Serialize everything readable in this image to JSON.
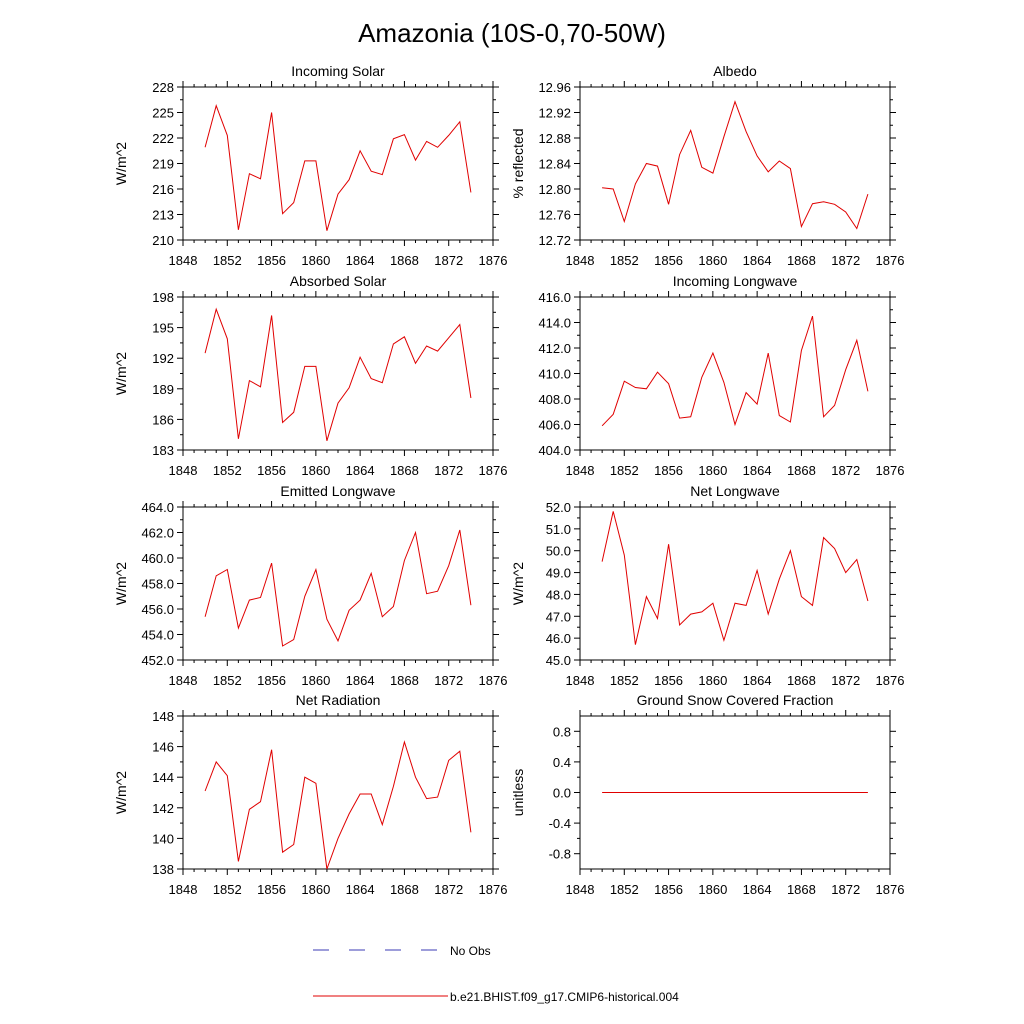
{
  "page": {
    "title": "Amazonia (10S-0,70-50W)"
  },
  "legend": {
    "obs_label": "No Obs",
    "obs_color": "#3b3bb5",
    "model_label": "b.e21.BHIST.f09_g17.CMIP6-historical.004",
    "model_color": "#e00000"
  },
  "chart_data": [
    {
      "type": "line",
      "title": "Incoming Solar",
      "ylabel": "W/m^2",
      "xlim": [
        1848,
        1876
      ],
      "xticks": [
        "1848",
        "1852",
        "1856",
        "1860",
        "1864",
        "1868",
        "1872",
        "1876"
      ],
      "ylim": [
        210,
        228
      ],
      "yticks": [
        "210",
        "213",
        "216",
        "219",
        "222",
        "225",
        "228"
      ],
      "series": [
        {
          "name": "b.e21.BHIST.f09_g17.CMIP6-historical.004",
          "x": [
            1850,
            1851,
            1852,
            1853,
            1854,
            1855,
            1856,
            1857,
            1858,
            1859,
            1860,
            1861,
            1862,
            1863,
            1864,
            1865,
            1866,
            1867,
            1868,
            1869,
            1870,
            1871,
            1872,
            1873,
            1874
          ],
          "values": [
            220.9,
            225.8,
            222.3,
            211.2,
            217.8,
            217.2,
            225.0,
            213.1,
            214.4,
            219.3,
            219.3,
            211.1,
            215.4,
            217.1,
            220.5,
            218.1,
            217.7,
            221.9,
            222.4,
            219.4,
            221.6,
            220.9,
            222.3,
            223.9,
            215.6
          ]
        }
      ]
    },
    {
      "type": "line",
      "title": "Albedo",
      "ylabel": "% reflected",
      "xlim": [
        1848,
        1876
      ],
      "xticks": [
        "1848",
        "1852",
        "1856",
        "1860",
        "1864",
        "1868",
        "1872",
        "1876"
      ],
      "ylim": [
        12.72,
        12.96
      ],
      "yticks": [
        "12.72",
        "12.76",
        "12.80",
        "12.84",
        "12.88",
        "12.92",
        "12.96"
      ],
      "series": [
        {
          "name": "b.e21.BHIST.f09_g17.CMIP6-historical.004",
          "x": [
            1850,
            1851,
            1852,
            1853,
            1854,
            1855,
            1856,
            1857,
            1858,
            1859,
            1860,
            1861,
            1862,
            1863,
            1864,
            1865,
            1866,
            1867,
            1868,
            1869,
            1870,
            1871,
            1872,
            1873,
            1874
          ],
          "values": [
            12.802,
            12.8,
            12.749,
            12.808,
            12.84,
            12.836,
            12.776,
            12.854,
            12.892,
            12.834,
            12.825,
            12.882,
            12.937,
            12.89,
            12.852,
            12.827,
            12.844,
            12.832,
            12.741,
            12.777,
            12.78,
            12.776,
            12.764,
            12.738,
            12.792
          ]
        }
      ]
    },
    {
      "type": "line",
      "title": "Absorbed Solar",
      "ylabel": "W/m^2",
      "xlim": [
        1848,
        1876
      ],
      "xticks": [
        "1848",
        "1852",
        "1856",
        "1860",
        "1864",
        "1868",
        "1872",
        "1876"
      ],
      "ylim": [
        183,
        198
      ],
      "yticks": [
        "183",
        "186",
        "189",
        "192",
        "195",
        "198"
      ],
      "series": [
        {
          "name": "b.e21.BHIST.f09_g17.CMIP6-historical.004",
          "x": [
            1850,
            1851,
            1852,
            1853,
            1854,
            1855,
            1856,
            1857,
            1858,
            1859,
            1860,
            1861,
            1862,
            1863,
            1864,
            1865,
            1866,
            1867,
            1868,
            1869,
            1870,
            1871,
            1872,
            1873,
            1874
          ],
          "values": [
            192.5,
            196.8,
            193.9,
            184.1,
            189.8,
            189.2,
            196.2,
            185.7,
            186.7,
            191.2,
            191.2,
            183.9,
            187.6,
            189.1,
            192.1,
            190.0,
            189.6,
            193.4,
            194.1,
            191.5,
            193.2,
            192.7,
            194.0,
            195.3,
            188.1
          ]
        }
      ]
    },
    {
      "type": "line",
      "title": "Incoming Longwave",
      "ylabel": "",
      "xlim": [
        1848,
        1876
      ],
      "xticks": [
        "1848",
        "1852",
        "1856",
        "1860",
        "1864",
        "1868",
        "1872",
        "1876"
      ],
      "ylim": [
        404,
        416
      ],
      "yticks": [
        "404.0",
        "406.0",
        "408.0",
        "410.0",
        "412.0",
        "414.0",
        "416.0"
      ],
      "series": [
        {
          "name": "b.e21.BHIST.f09_g17.CMIP6-historical.004",
          "x": [
            1850,
            1851,
            1852,
            1853,
            1854,
            1855,
            1856,
            1857,
            1858,
            1859,
            1860,
            1861,
            1862,
            1863,
            1864,
            1865,
            1866,
            1867,
            1868,
            1869,
            1870,
            1871,
            1872,
            1873,
            1874
          ],
          "values": [
            405.9,
            406.8,
            409.4,
            408.9,
            408.8,
            410.1,
            409.2,
            406.5,
            406.6,
            409.7,
            411.6,
            409.3,
            406.0,
            408.5,
            407.6,
            411.6,
            406.7,
            406.2,
            411.8,
            414.5,
            406.6,
            407.5,
            410.3,
            412.6,
            408.6
          ]
        }
      ]
    },
    {
      "type": "line",
      "title": "Emitted Longwave",
      "ylabel": "W/m^2",
      "xlim": [
        1848,
        1876
      ],
      "xticks": [
        "1848",
        "1852",
        "1856",
        "1860",
        "1864",
        "1868",
        "1872",
        "1876"
      ],
      "ylim": [
        452,
        464
      ],
      "yticks": [
        "452.0",
        "454.0",
        "456.0",
        "458.0",
        "460.0",
        "462.0",
        "464.0"
      ],
      "series": [
        {
          "name": "b.e21.BHIST.f09_g17.CMIP6-historical.004",
          "x": [
            1850,
            1851,
            1852,
            1853,
            1854,
            1855,
            1856,
            1857,
            1858,
            1859,
            1860,
            1861,
            1862,
            1863,
            1864,
            1865,
            1866,
            1867,
            1868,
            1869,
            1870,
            1871,
            1872,
            1873,
            1874
          ],
          "values": [
            455.4,
            458.6,
            459.1,
            454.5,
            456.7,
            456.9,
            459.6,
            453.1,
            453.6,
            457.0,
            459.1,
            455.2,
            453.5,
            455.9,
            456.7,
            458.8,
            455.4,
            456.2,
            459.8,
            462.0,
            457.2,
            457.4,
            459.4,
            462.2,
            456.3
          ]
        }
      ]
    },
    {
      "type": "line",
      "title": "Net Longwave",
      "ylabel": "W/m^2",
      "xlim": [
        1848,
        1876
      ],
      "xticks": [
        "1848",
        "1852",
        "1856",
        "1860",
        "1864",
        "1868",
        "1872",
        "1876"
      ],
      "ylim": [
        45,
        52
      ],
      "yticks": [
        "45.0",
        "46.0",
        "47.0",
        "48.0",
        "49.0",
        "50.0",
        "51.0",
        "52.0"
      ],
      "series": [
        {
          "name": "b.e21.BHIST.f09_g17.CMIP6-historical.004",
          "x": [
            1850,
            1851,
            1852,
            1853,
            1854,
            1855,
            1856,
            1857,
            1858,
            1859,
            1860,
            1861,
            1862,
            1863,
            1864,
            1865,
            1866,
            1867,
            1868,
            1869,
            1870,
            1871,
            1872,
            1873,
            1874
          ],
          "values": [
            49.5,
            51.8,
            49.8,
            45.7,
            47.9,
            46.9,
            50.3,
            46.6,
            47.1,
            47.2,
            47.6,
            45.9,
            47.6,
            47.5,
            49.1,
            47.1,
            48.7,
            50.0,
            47.9,
            47.5,
            50.6,
            50.1,
            49.0,
            49.6,
            47.7
          ]
        }
      ]
    },
    {
      "type": "line",
      "title": "Net Radiation",
      "ylabel": "W/m^2",
      "xlim": [
        1848,
        1876
      ],
      "xticks": [
        "1848",
        "1852",
        "1856",
        "1860",
        "1864",
        "1868",
        "1872",
        "1876"
      ],
      "ylim": [
        138,
        148
      ],
      "yticks": [
        "138",
        "140",
        "142",
        "144",
        "146",
        "148"
      ],
      "series": [
        {
          "name": "b.e21.BHIST.f09_g17.CMIP6-historical.004",
          "x": [
            1850,
            1851,
            1852,
            1853,
            1854,
            1855,
            1856,
            1857,
            1858,
            1859,
            1860,
            1861,
            1862,
            1863,
            1864,
            1865,
            1866,
            1867,
            1868,
            1869,
            1870,
            1871,
            1872,
            1873,
            1874
          ],
          "values": [
            143.1,
            145.0,
            144.1,
            138.5,
            141.9,
            142.4,
            145.8,
            139.1,
            139.6,
            144.0,
            143.6,
            138.0,
            140.0,
            141.6,
            142.9,
            142.9,
            140.9,
            143.4,
            146.3,
            144.0,
            142.6,
            142.7,
            145.1,
            145.7,
            140.4
          ]
        }
      ]
    },
    {
      "type": "line",
      "title": "Ground Snow Covered Fraction",
      "ylabel": "unitless",
      "xlim": [
        1848,
        1876
      ],
      "xticks": [
        "1848",
        "1852",
        "1856",
        "1860",
        "1864",
        "1868",
        "1872",
        "1876"
      ],
      "ylim": [
        -1.0,
        1.0
      ],
      "yticks": [
        "-0.8",
        "-0.4",
        "0.0",
        "0.4",
        "0.8"
      ],
      "ytick_values": [
        -0.8,
        -0.4,
        0.0,
        0.4,
        0.8
      ],
      "series": [
        {
          "name": "b.e21.BHIST.f09_g17.CMIP6-historical.004",
          "x": [
            1850,
            1851,
            1852,
            1853,
            1854,
            1855,
            1856,
            1857,
            1858,
            1859,
            1860,
            1861,
            1862,
            1863,
            1864,
            1865,
            1866,
            1867,
            1868,
            1869,
            1870,
            1871,
            1872,
            1873,
            1874
          ],
          "values": [
            0,
            0,
            0,
            0,
            0,
            0,
            0,
            0,
            0,
            0,
            0,
            0,
            0,
            0,
            0,
            0,
            0,
            0,
            0,
            0,
            0,
            0,
            0,
            0,
            0
          ]
        }
      ]
    }
  ]
}
